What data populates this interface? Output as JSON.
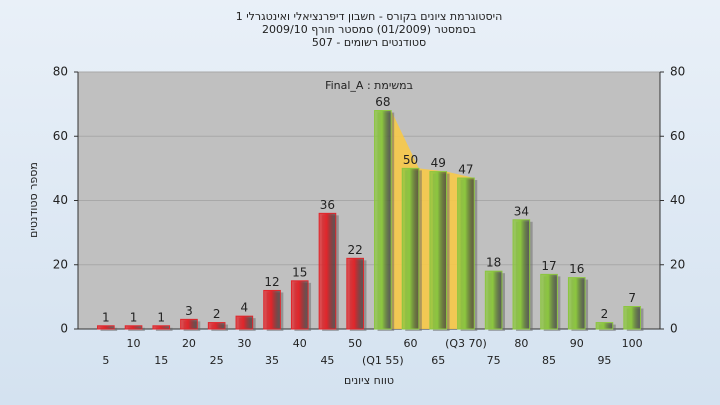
{
  "chart_data": {
    "type": "bar",
    "title": "היסטוגרמת ציונים בקורס - חשבון דיפרנציאלי ואינטגרלי 1",
    "subtitle": "בסמסטר (01/2009) סמסטר חורף 2009/10",
    "subtitle2": "סטודנטים רשומים - 507",
    "annotation": "במשימת : Final_A",
    "x_label": "טווח ציונים",
    "y_label": "מספר סטודנטים",
    "categories": [
      "5",
      "10",
      "15",
      "20",
      "25",
      "30",
      "35",
      "40",
      "45",
      "50",
      "(Q1 55)",
      "60",
      "65",
      "(Q3 70)",
      "75",
      "80",
      "85",
      "90",
      "95",
      "100"
    ],
    "values": [
      1,
      1,
      1,
      3,
      2,
      4,
      12,
      15,
      36,
      22,
      68,
      50,
      49,
      47,
      18,
      34,
      17,
      16,
      2,
      7
    ],
    "colors": [
      "#e0262b",
      "#e0262b",
      "#e0262b",
      "#e0262b",
      "#e0262b",
      "#e0262b",
      "#e0262b",
      "#e0262b",
      "#e0262b",
      "#e0262b",
      "#8cc63f",
      "#8cc63f",
      "#8cc63f",
      "#8cc63f",
      "#8cc63f",
      "#8cc63f",
      "#8cc63f",
      "#8cc63f",
      "#8cc63f",
      "#8cc63f"
    ],
    "area_color": "#f7c948",
    "ylim": [
      0,
      80
    ],
    "yticks": [
      0,
      20,
      40,
      60,
      80
    ],
    "y2lim": [
      0,
      80
    ],
    "y2ticks": [
      0,
      20,
      40,
      60,
      80
    ],
    "grid": true
  }
}
